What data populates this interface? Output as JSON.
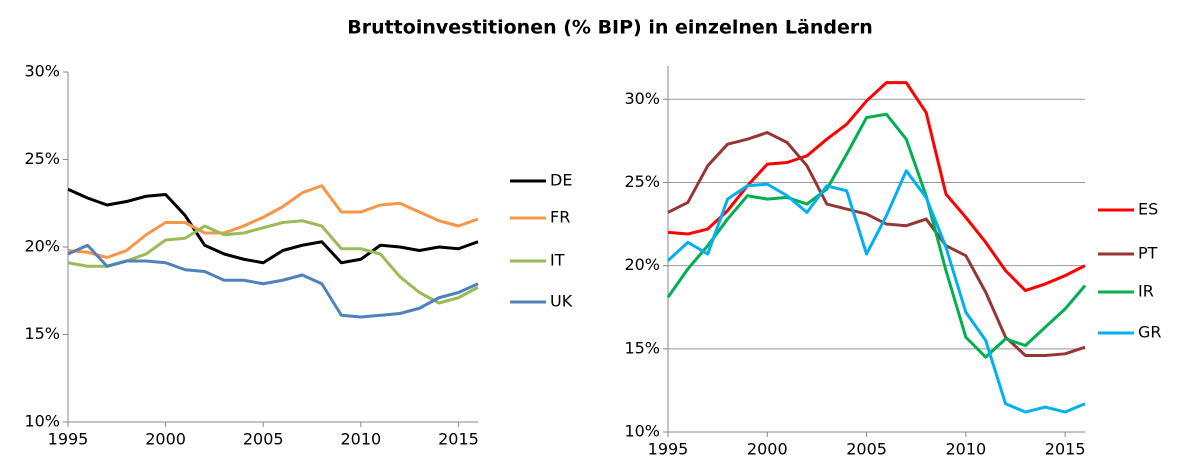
{
  "title": "Bruttoinvestitionen (% BIP) in einzelnen Ländern",
  "chart_data": [
    {
      "type": "line",
      "x": [
        1995,
        1996,
        1997,
        1998,
        1999,
        2000,
        2001,
        2002,
        2003,
        2004,
        2005,
        2006,
        2007,
        2008,
        2009,
        2010,
        2011,
        2012,
        2013,
        2014,
        2015,
        2016
      ],
      "xlim": [
        1995,
        2016
      ],
      "xticks": [
        1995,
        2000,
        2005,
        2010,
        2015
      ],
      "ylim": [
        10,
        30
      ],
      "yticks": [
        {
          "value": 10,
          "label": "10%"
        },
        {
          "value": 15,
          "label": "15%"
        },
        {
          "value": 20,
          "label": "20%"
        },
        {
          "value": 25,
          "label": "25%"
        },
        {
          "value": 30,
          "label": "30%"
        }
      ],
      "grid": false,
      "series": [
        {
          "name": "DE",
          "color": "#000000",
          "values": [
            23.3,
            22.8,
            22.4,
            22.6,
            22.9,
            23.0,
            21.8,
            20.1,
            19.6,
            19.3,
            19.1,
            19.8,
            20.1,
            20.3,
            19.1,
            19.3,
            20.1,
            20.0,
            19.8,
            20.0,
            19.9,
            20.3
          ]
        },
        {
          "name": "FR",
          "color": "#f79646",
          "values": [
            19.8,
            19.7,
            19.4,
            19.8,
            20.7,
            21.4,
            21.4,
            20.8,
            20.8,
            21.2,
            21.7,
            22.3,
            23.1,
            23.5,
            22.0,
            22.0,
            22.4,
            22.5,
            22.0,
            21.5,
            21.2,
            21.6
          ]
        },
        {
          "name": "IT",
          "color": "#9bbb59",
          "values": [
            19.1,
            18.9,
            18.9,
            19.2,
            19.6,
            20.4,
            20.5,
            21.2,
            20.7,
            20.8,
            21.1,
            21.4,
            21.5,
            21.2,
            19.9,
            19.9,
            19.6,
            18.3,
            17.4,
            16.8,
            17.1,
            17.7
          ]
        },
        {
          "name": "UK",
          "color": "#4f81bd",
          "values": [
            19.6,
            20.1,
            18.9,
            19.2,
            19.2,
            19.1,
            18.7,
            18.6,
            18.1,
            18.1,
            17.9,
            18.1,
            18.4,
            17.9,
            16.1,
            16.0,
            16.1,
            16.2,
            16.5,
            17.1,
            17.4,
            17.9
          ]
        }
      ]
    },
    {
      "type": "line",
      "x": [
        1995,
        1996,
        1997,
        1998,
        1999,
        2000,
        2001,
        2002,
        2003,
        2004,
        2005,
        2006,
        2007,
        2008,
        2009,
        2010,
        2011,
        2012,
        2013,
        2014,
        2015,
        2016
      ],
      "xlim": [
        1995,
        2016
      ],
      "xticks": [
        1995,
        2000,
        2005,
        2010,
        2015
      ],
      "ylim": [
        10,
        32
      ],
      "yticks": [
        {
          "value": 10,
          "label": "10%"
        },
        {
          "value": 15,
          "label": "15%"
        },
        {
          "value": 20,
          "label": "20%"
        },
        {
          "value": 25,
          "label": "25%"
        },
        {
          "value": 30,
          "label": "30%"
        }
      ],
      "grid": true,
      "series": [
        {
          "name": "ES",
          "color": "#ff0000",
          "values": [
            22.0,
            21.9,
            22.2,
            23.3,
            24.8,
            26.1,
            26.2,
            26.6,
            27.6,
            28.5,
            29.9,
            31.0,
            31.0,
            29.2,
            24.3,
            22.9,
            21.4,
            19.7,
            18.5,
            18.9,
            19.4,
            20.0
          ]
        },
        {
          "name": "PT",
          "color": "#953735",
          "values": [
            23.2,
            23.8,
            26.0,
            27.3,
            27.6,
            28.0,
            27.4,
            26.0,
            23.7,
            23.4,
            23.1,
            22.5,
            22.4,
            22.8,
            21.2,
            20.6,
            18.4,
            15.7,
            14.6,
            14.6,
            14.7,
            15.1
          ]
        },
        {
          "name": "IR",
          "color": "#00b050",
          "values": [
            18.1,
            19.8,
            21.2,
            22.8,
            24.2,
            24.0,
            24.1,
            23.7,
            24.6,
            26.7,
            28.9,
            29.1,
            27.6,
            24.2,
            19.7,
            15.7,
            14.5,
            15.6,
            15.2,
            16.3,
            17.4,
            18.8
          ]
        },
        {
          "name": "GR",
          "color": "#00b0f0",
          "values": [
            20.3,
            21.4,
            20.7,
            24.0,
            24.8,
            24.9,
            24.2,
            23.2,
            24.8,
            24.5,
            20.7,
            23.0,
            25.7,
            24.1,
            21.1,
            17.2,
            15.5,
            11.7,
            11.2,
            11.5,
            11.2,
            11.7
          ]
        }
      ]
    }
  ]
}
